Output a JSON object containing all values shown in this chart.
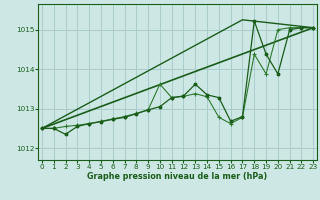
{
  "xlabel": "Graphe pression niveau de la mer (hPa)",
  "background_color": "#cde8e4",
  "grid_color": "#aacccc",
  "line_color_dark": "#1a5c1a",
  "line_color_medium": "#2d7a2d",
  "ylim": [
    1011.7,
    1015.65
  ],
  "xlim": [
    -0.3,
    23.3
  ],
  "yticks": [
    1012,
    1013,
    1014,
    1015
  ],
  "xticks": [
    0,
    1,
    2,
    3,
    4,
    5,
    6,
    7,
    8,
    9,
    10,
    11,
    12,
    13,
    14,
    15,
    16,
    17,
    18,
    19,
    20,
    21,
    22,
    23
  ],
  "line1_x": [
    0,
    23
  ],
  "line1_y": [
    1012.5,
    1015.05
  ],
  "line2_x": [
    0,
    17,
    23
  ],
  "line2_y": [
    1012.5,
    1015.25,
    1015.05
  ],
  "main_x": [
    0,
    1,
    2,
    3,
    4,
    5,
    6,
    7,
    8,
    9,
    10,
    11,
    12,
    13,
    14,
    15,
    16,
    17,
    18,
    19,
    20,
    21,
    22,
    23
  ],
  "main_y": [
    1012.5,
    1012.5,
    1012.35,
    1012.55,
    1012.62,
    1012.67,
    1012.73,
    1012.78,
    1012.87,
    1012.97,
    1013.05,
    1013.28,
    1013.32,
    1013.62,
    1013.35,
    1013.28,
    1012.68,
    1012.8,
    1015.22,
    1014.38,
    1013.88,
    1015.0,
    1015.05,
    1015.05
  ],
  "main2_x": [
    0,
    1,
    2,
    3,
    4,
    5,
    6,
    7,
    8,
    9,
    10,
    11,
    12,
    13,
    14,
    15,
    16,
    17,
    18,
    19,
    20,
    21,
    22,
    23
  ],
  "main2_y": [
    1012.5,
    1012.5,
    1012.55,
    1012.58,
    1012.62,
    1012.68,
    1012.74,
    1012.8,
    1012.88,
    1012.97,
    1013.62,
    1013.28,
    1013.31,
    1013.38,
    1013.3,
    1012.78,
    1012.62,
    1012.78,
    1014.38,
    1013.88,
    1015.0,
    1015.05,
    1015.05,
    1015.05
  ]
}
